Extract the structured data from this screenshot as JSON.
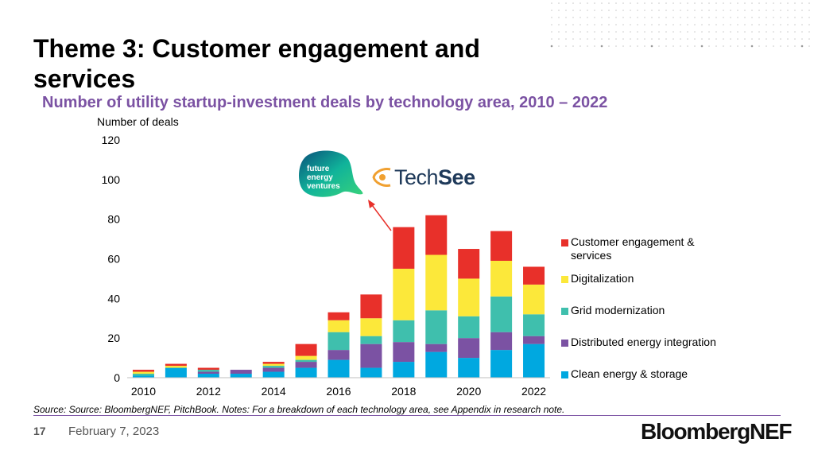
{
  "slide": {
    "title": "Theme 3: Customer engagement and services",
    "subtitle": "Number of utility startup-investment deals by technology area, 2010 – 2022",
    "page_number": "17",
    "date": "February 7, 2023",
    "brand": "BloombergNEF",
    "footnote": "Source: Source: BloombergNEF, PitchBook. Notes: For a breakdown of each technology area, see Appendix in research note."
  },
  "logos": {
    "future_energy_ventures": [
      "future",
      "energy",
      "ventures"
    ],
    "techsee": {
      "part1": "Tech",
      "part2": "See"
    }
  },
  "colors": {
    "accent": "#7b52a3",
    "clean": "#00a8e0",
    "distributed": "#7b52a3",
    "grid": "#3fbfad",
    "digital": "#fce83a",
    "customer": "#e8302a",
    "annotation_arrow": "#e8302a"
  },
  "chart_data": {
    "type": "bar",
    "stacked": true,
    "title": "Number of utility startup-investment deals by technology area, 2010 – 2022",
    "ylabel": "Number of deals",
    "xlabel": "",
    "ylim": [
      0,
      120
    ],
    "yticks": [
      0,
      20,
      40,
      60,
      80,
      100,
      120
    ],
    "x_tick_labels": [
      "2010",
      "2012",
      "2014",
      "2016",
      "2018",
      "2020",
      "2022"
    ],
    "categories": [
      "2010",
      "2011",
      "2012",
      "2013",
      "2014",
      "2015",
      "2016",
      "2017",
      "2018",
      "2019",
      "2020",
      "2021",
      "2022"
    ],
    "series": [
      {
        "name": "Clean energy & storage",
        "color": "#00a8e0",
        "values": [
          1,
          5,
          2,
          2,
          3,
          5,
          9,
          5,
          8,
          13,
          10,
          14,
          17
        ]
      },
      {
        "name": "Distributed energy integration",
        "color": "#7b52a3",
        "values": [
          0,
          0,
          1,
          2,
          2,
          3,
          5,
          12,
          10,
          4,
          10,
          9,
          4
        ]
      },
      {
        "name": "Grid modernization",
        "color": "#3fbfad",
        "values": [
          1,
          0,
          1,
          0,
          1,
          1,
          9,
          4,
          11,
          17,
          11,
          18,
          11
        ]
      },
      {
        "name": "Digitalization",
        "color": "#fce83a",
        "values": [
          1,
          1,
          0,
          0,
          1,
          2,
          6,
          9,
          26,
          28,
          19,
          18,
          15
        ]
      },
      {
        "name": "Customer engagement & services",
        "color": "#e8302a",
        "values": [
          1,
          1,
          1,
          0,
          1,
          6,
          4,
          12,
          21,
          20,
          15,
          15,
          9
        ]
      }
    ],
    "legend_order": [
      4,
      3,
      2,
      1,
      0
    ],
    "legend_position": "right",
    "grid": false,
    "annotation": {
      "type": "arrow",
      "from_category": "2018",
      "to": "logos"
    }
  }
}
